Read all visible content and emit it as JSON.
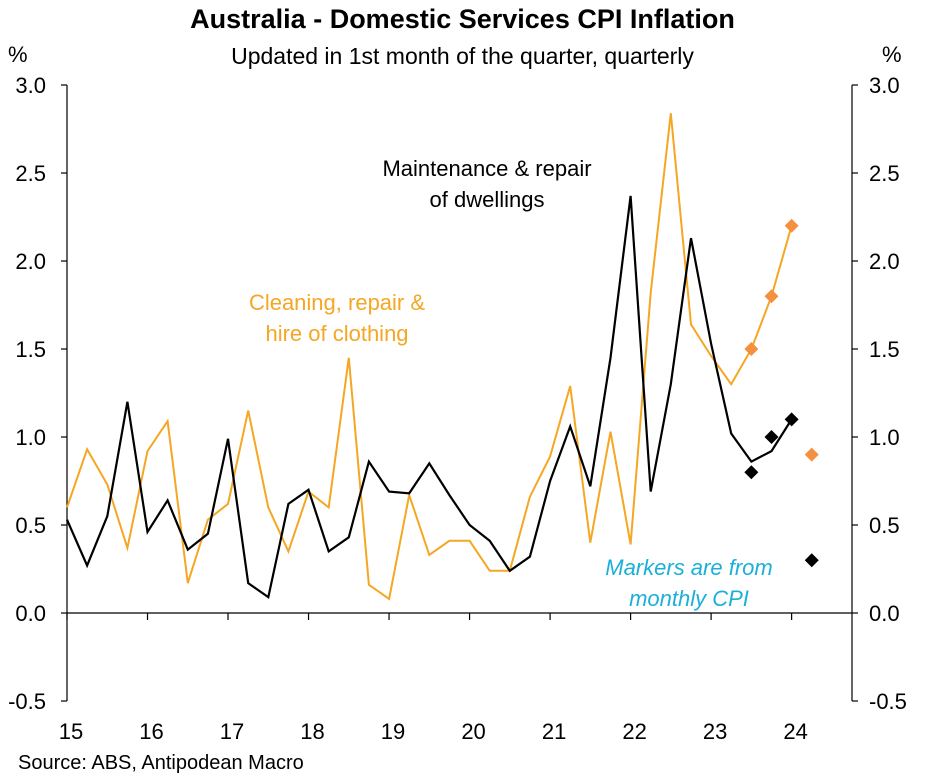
{
  "chart_data": {
    "type": "line",
    "title": "Australia - Domestic Services CPI Inflation",
    "subtitle": "Updated in 1st month of the quarter, quarterly",
    "ylabel_left": "%",
    "ylabel_right": "%",
    "ylim": [
      -0.5,
      3.0
    ],
    "yticks": [
      -0.5,
      0.0,
      0.5,
      1.0,
      1.5,
      2.0,
      2.5,
      3.0
    ],
    "ytick_labels": [
      "-0.5",
      "0.0",
      "0.5",
      "1.0",
      "1.5",
      "2.0",
      "2.5",
      "3.0"
    ],
    "xlim": [
      2015,
      2024.75
    ],
    "xticks": [
      2015,
      2016,
      2017,
      2018,
      2019,
      2020,
      2021,
      2022,
      2023,
      2024
    ],
    "xtick_labels": [
      "15",
      "16",
      "17",
      "18",
      "19",
      "20",
      "21",
      "22",
      "23",
      "24"
    ],
    "series": [
      {
        "name": "Cleaning, repair & hire of clothing",
        "label": "Cleaning, repair & hire of clothing",
        "label_lines": [
          "Cleaning, repair &",
          "hire of clothing"
        ],
        "color": "#F5A623",
        "x": [
          2015.0,
          2015.25,
          2015.5,
          2015.75,
          2016.0,
          2016.25,
          2016.5,
          2016.75,
          2017.0,
          2017.25,
          2017.5,
          2017.75,
          2018.0,
          2018.25,
          2018.5,
          2018.75,
          2019.0,
          2019.25,
          2019.5,
          2019.75,
          2020.0,
          2020.25,
          2020.5,
          2020.75,
          2021.0,
          2021.25,
          2021.5,
          2021.75,
          2022.0,
          2022.25,
          2022.5,
          2022.75,
          2023.0,
          2023.25,
          2023.5,
          2023.75,
          2024.0
        ],
        "values": [
          0.6,
          0.93,
          0.73,
          0.37,
          0.92,
          1.09,
          0.17,
          0.53,
          0.62,
          1.15,
          0.6,
          0.35,
          0.69,
          0.6,
          1.45,
          0.16,
          0.08,
          0.67,
          0.33,
          0.41,
          0.41,
          0.24,
          0.24,
          0.66,
          0.89,
          1.29,
          0.4,
          1.03,
          0.39,
          1.82,
          2.84,
          1.64,
          1.46,
          1.3,
          1.5,
          1.8,
          2.2
        ]
      },
      {
        "name": "Maintenance & repair of dwellings",
        "label": "Maintenance & repair of dwellings",
        "label_lines": [
          "Maintenance & repair",
          "of dwellings"
        ],
        "color": "#000000",
        "x": [
          2015.0,
          2015.25,
          2015.5,
          2015.75,
          2016.0,
          2016.25,
          2016.5,
          2016.75,
          2017.0,
          2017.25,
          2017.5,
          2017.75,
          2018.0,
          2018.25,
          2018.5,
          2018.75,
          2019.0,
          2019.25,
          2019.5,
          2019.75,
          2020.0,
          2020.25,
          2020.5,
          2020.75,
          2021.0,
          2021.25,
          2021.5,
          2021.75,
          2022.0,
          2022.25,
          2022.5,
          2022.75,
          2023.0,
          2023.25,
          2023.5,
          2023.75,
          2024.0
        ],
        "values": [
          0.53,
          0.27,
          0.55,
          1.2,
          0.46,
          0.64,
          0.36,
          0.45,
          0.99,
          0.17,
          0.09,
          0.62,
          0.7,
          0.35,
          0.43,
          0.86,
          0.69,
          0.68,
          0.85,
          0.67,
          0.5,
          0.41,
          0.24,
          0.32,
          0.75,
          1.06,
          0.72,
          1.45,
          2.37,
          0.69,
          1.3,
          2.13,
          1.53,
          1.02,
          0.86,
          0.92,
          1.1
        ]
      }
    ],
    "markers": [
      {
        "name": "Cleaning, repair & hire of clothing (monthly CPI)",
        "color": "#F5903F",
        "x": [
          2023.5,
          2023.75,
          2024.0,
          2024.25
        ],
        "values": [
          1.5,
          1.8,
          2.2,
          0.9
        ]
      },
      {
        "name": "Maintenance & repair of dwellings (monthly CPI)",
        "color": "#000000",
        "x": [
          2023.5,
          2023.75,
          2024.0,
          2024.25
        ],
        "values": [
          0.8,
          1.0,
          1.1,
          0.3
        ]
      }
    ],
    "annotation": {
      "lines": [
        "Markers are from",
        "monthly CPI"
      ],
      "color": "#1AB0D8"
    }
  },
  "source": "Source: ABS, Antipodean Macro"
}
